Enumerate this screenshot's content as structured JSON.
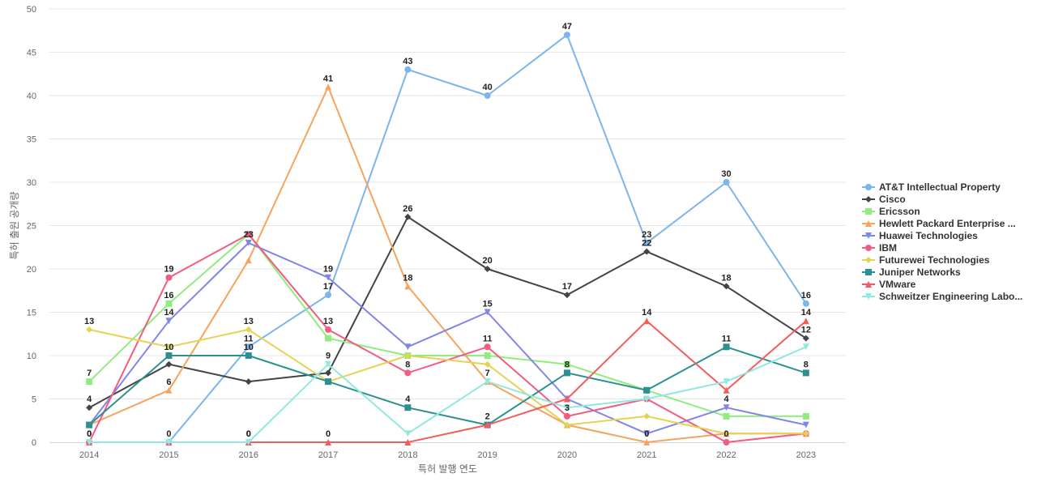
{
  "chart_data": {
    "type": "line",
    "xlabel": "특허 발행 연도",
    "ylabel": "특허 출원 공개량",
    "ylim": [
      0,
      50
    ],
    "yticks": [
      0,
      5,
      10,
      15,
      20,
      25,
      30,
      35,
      40,
      45,
      50
    ],
    "categories": [
      "2014",
      "2015",
      "2016",
      "2017",
      "2018",
      "2019",
      "2020",
      "2021",
      "2022",
      "2023"
    ],
    "grid": true,
    "legend_position": "right",
    "series": [
      {
        "name": "AT&T Intellectual Property",
        "color": "#7cb5ec",
        "marker": "circle",
        "values": [
          0,
          0,
          11,
          17,
          43,
          40,
          47,
          23,
          30,
          16
        ]
      },
      {
        "name": "Cisco",
        "color": "#434348",
        "marker": "diamond",
        "values": [
          4,
          9,
          7,
          8,
          26,
          20,
          17,
          22,
          18,
          12
        ]
      },
      {
        "name": "Ericsson",
        "color": "#90ed7d",
        "marker": "square",
        "values": [
          7,
          16,
          24,
          12,
          10,
          10,
          9,
          6,
          3,
          3
        ]
      },
      {
        "name": "Hewlett Packard Enterprise ...",
        "color": "#f7a35c",
        "marker": "triangle",
        "values": [
          2,
          6,
          21,
          41,
          18,
          7,
          2,
          0,
          1,
          1
        ]
      },
      {
        "name": "Huawei Technologies",
        "color": "#8085e9",
        "marker": "triangle-down",
        "values": [
          2,
          14,
          23,
          19,
          11,
          15,
          5,
          1,
          4,
          2
        ]
      },
      {
        "name": "IBM",
        "color": "#f15c80",
        "marker": "circle",
        "values": [
          0,
          19,
          24,
          13,
          8,
          11,
          3,
          5,
          0,
          1
        ]
      },
      {
        "name": "Futurewei Technologies",
        "color": "#e4d354",
        "marker": "diamond",
        "values": [
          13,
          11,
          13,
          7,
          10,
          9,
          2,
          3,
          1,
          1
        ]
      },
      {
        "name": "Juniper Networks",
        "color": "#2b908f",
        "marker": "square",
        "values": [
          2,
          10,
          10,
          7,
          4,
          2,
          8,
          6,
          11,
          8
        ]
      },
      {
        "name": "VMware",
        "color": "#f45b5b",
        "marker": "triangle",
        "values": [
          0,
          0,
          0,
          0,
          0,
          2,
          5,
          14,
          6,
          14
        ]
      },
      {
        "name": "Schweitzer Engineering Labo...",
        "color": "#91e8e1",
        "marker": "triangle-down",
        "values": [
          0,
          0,
          0,
          9,
          1,
          7,
          4,
          5,
          7,
          11
        ]
      }
    ],
    "data_labels": [
      {
        "series": 0,
        "points": [
          1,
          2,
          3,
          4,
          5,
          6,
          7,
          8,
          9
        ]
      },
      {
        "series": 1,
        "points": [
          0,
          4,
          5,
          6,
          7,
          8,
          9
        ]
      },
      {
        "series": 2,
        "points": [
          0,
          1
        ]
      },
      {
        "series": 3,
        "points": [
          1,
          3,
          4,
          5
        ]
      },
      {
        "series": 4,
        "points": [
          1,
          2,
          3,
          5,
          8
        ]
      },
      {
        "series": 5,
        "points": [
          1,
          3,
          4,
          5,
          6,
          8
        ]
      },
      {
        "series": 6,
        "points": [
          0,
          2
        ]
      },
      {
        "series": 7,
        "points": [
          1,
          2,
          4,
          6,
          8,
          9
        ]
      },
      {
        "series": 8,
        "points": [
          0,
          3,
          5,
          7,
          9
        ]
      },
      {
        "series": 9,
        "points": [
          2,
          3
        ]
      }
    ],
    "extra_labels": [
      {
        "x_index": 0,
        "value": 0,
        "text": "0"
      },
      {
        "x_index": 2,
        "value": 0,
        "text": "0"
      },
      {
        "x_index": 7,
        "value": 0,
        "text": "0"
      }
    ]
  }
}
